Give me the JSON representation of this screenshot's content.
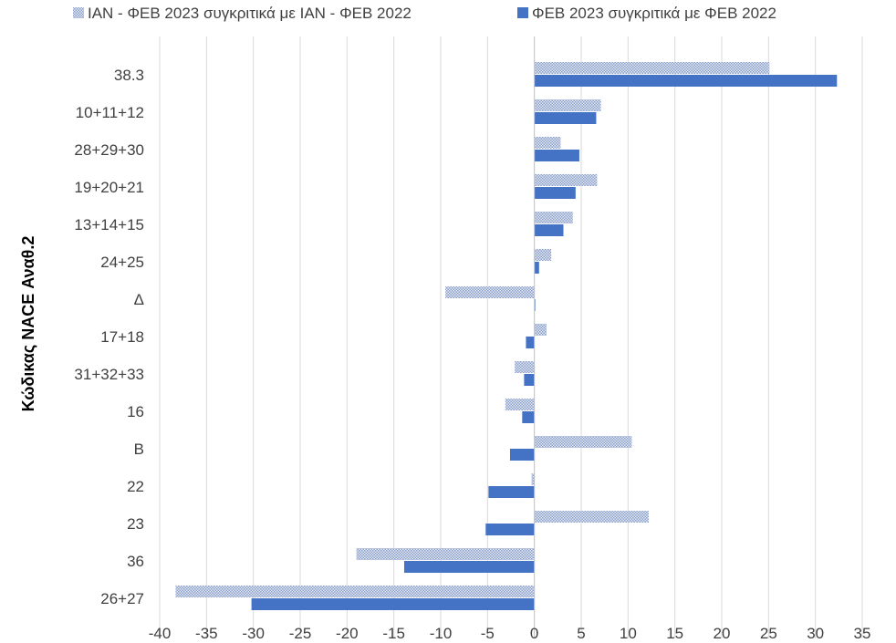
{
  "chart_data": {
    "type": "bar",
    "orientation": "horizontal",
    "ylabel": "Κώδικας NACE Αναθ.2",
    "xlabel": "",
    "xlim": [
      -40,
      35
    ],
    "xticks": [
      -40,
      -35,
      -30,
      -25,
      -20,
      -15,
      -10,
      -5,
      0,
      5,
      10,
      15,
      20,
      25,
      30,
      35
    ],
    "grid": "vertical",
    "legend_position": "top",
    "categories": [
      "38.3",
      "10+11+12",
      "28+29+30",
      "19+20+21",
      "13+14+15",
      "24+25",
      "Δ",
      "17+18",
      "31+32+33",
      "16",
      "B",
      "22",
      "23",
      "36",
      "26+27"
    ],
    "series": [
      {
        "name": "ΙΑΝ - ΦΕΒ 2023 συγκριτικά με ΙΑΝ - ΦΕΒ 2022",
        "color": "#9aaed6",
        "pattern": "dotted-fill",
        "values": [
          25.1,
          7.1,
          2.8,
          6.7,
          4.1,
          1.8,
          -9.5,
          1.3,
          -2.1,
          -3.1,
          10.4,
          -0.3,
          12.2,
          -19.0,
          -38.3
        ]
      },
      {
        "name": "ΦΕΒ 2023 συγκριτικά με ΦΕΒ 2022",
        "color": "#4472c4",
        "pattern": "solid",
        "values": [
          32.3,
          6.6,
          4.8,
          4.4,
          3.1,
          0.5,
          0.1,
          -0.9,
          -1.1,
          -1.3,
          -2.6,
          -4.9,
          -5.2,
          -13.9,
          -30.2
        ]
      }
    ]
  }
}
